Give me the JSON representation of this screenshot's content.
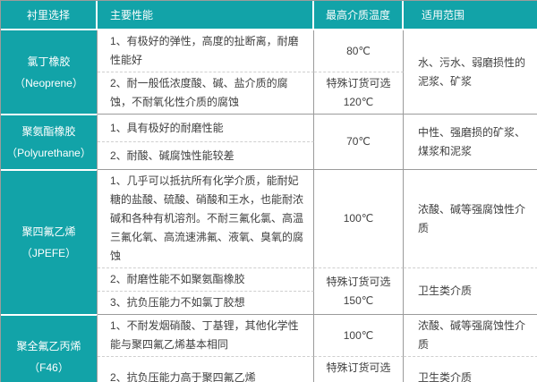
{
  "colors": {
    "header_bg": "#12a3a8",
    "grid": "#9b9b9b",
    "dashed": "#cfcfcf",
    "text": "#404040",
    "header_text": "#ffffff"
  },
  "table": {
    "headers": {
      "lining": "衬里选择",
      "performance": "主要性能",
      "temperature": "最高介质温度",
      "range": "适用范围"
    },
    "groups": [
      {
        "name": "氯丁橡胶",
        "en": "（Neoprene）",
        "rows": [
          {
            "perf": "1、有极好的弹性，高度的扯断离，耐磨性能好",
            "temp": "80℃",
            "range": "水、污水、弱磨损性的泥浆、矿浆"
          },
          {
            "perf": "2、耐一般低浓度酸、碱、盐介质的腐蚀，不耐氧化性介质的腐蚀",
            "temp": "特殊订货可选\n120℃"
          }
        ]
      },
      {
        "name": "聚氨酯橡胶",
        "en": "（Polyurethane）",
        "rows": [
          {
            "perf": "1、具有极好的耐磨性能",
            "temp": "70℃",
            "range": "中性、强磨损的矿浆、煤浆和泥浆"
          },
          {
            "perf": "2、耐酸、碱腐蚀性能较差"
          }
        ]
      },
      {
        "name": "聚四氟乙烯",
        "en": "（JPEFE）",
        "rows": [
          {
            "perf": "1、几乎可以抵抗所有化学介质，能耐妃糖的盐酸、硫酸、硝酸和王水，也能耐浓碱和各种有机溶剂。不耐三氟化氯、高温三氟化氧、高流速沸氟、液氧、臭氧的腐蚀",
            "temp": "100℃",
            "range": "浓酸、碱等强腐蚀性介质"
          },
          {
            "perf": "2、耐磨性能不如聚氨酯橡胶",
            "temp": "特殊订货可选\n150℃",
            "range": "卫生类介质"
          },
          {
            "perf": "3、抗负压能力不如氯丁胶想"
          }
        ]
      },
      {
        "name": "聚全氟乙丙烯",
        "en": "（F46）",
        "rows": [
          {
            "perf": "1、不耐发烟硝酸、丁基锂，其他化学性能与聚四氟乙烯基本相同",
            "temp": "100℃",
            "range": "浓酸、碱等强腐蚀性介质"
          },
          {
            "perf": "2、抗负压能力高于聚四氟乙烯",
            "temp": "特殊订货可选\n150℃",
            "range": "卫生类介质"
          }
        ]
      }
    ]
  }
}
